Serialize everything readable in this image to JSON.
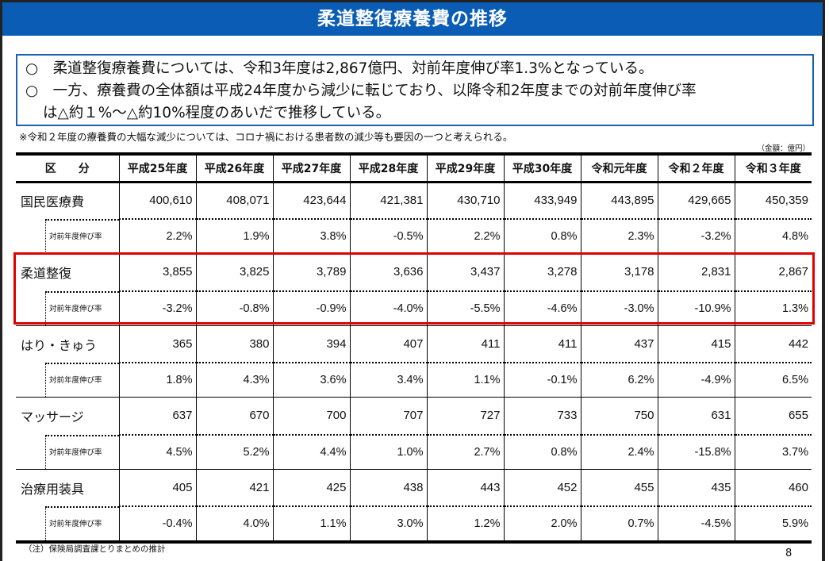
{
  "title": "柔道整復療養費の推移",
  "summary": {
    "line1": "○　柔道整復療養費については、令和3年度は2,867億円、対前年度伸び率1.3%となっている。",
    "line2": "○　一方、療養費の全体額は平成24年度から減少に転じており、以降令和2年度までの対前年度伸び率",
    "line3": "は△約１%～△約10%程度のあいだで推移している。"
  },
  "note": "※令和２年度の療養費の大幅な減少については、コロナ禍における患者数の減少等も要因の一つと考えられる。",
  "unit": "（金額：億円）",
  "table": {
    "headers": [
      "区　　分",
      "平成25年度",
      "平成26年度",
      "平成27年度",
      "平成28年度",
      "平成29年度",
      "平成30年度",
      "令和元年度",
      "令和２年度",
      "令和３年度"
    ],
    "sub_label": "対前年度伸び率",
    "rows": [
      {
        "category": "国民医療費",
        "values": [
          "400,610",
          "408,071",
          "423,644",
          "421,381",
          "430,710",
          "433,949",
          "443,895",
          "429,665",
          "450,359"
        ],
        "rates": [
          "2.2%",
          "1.9%",
          "3.8%",
          "-0.5%",
          "2.2%",
          "0.8%",
          "2.3%",
          "-3.2%",
          "4.8%"
        ]
      },
      {
        "category": "柔道整復",
        "highlighted": true,
        "values": [
          "3,855",
          "3,825",
          "3,789",
          "3,636",
          "3,437",
          "3,278",
          "3,178",
          "2,831",
          "2,867"
        ],
        "rates": [
          "-3.2%",
          "-0.8%",
          "-0.9%",
          "-4.0%",
          "-5.5%",
          "-4.6%",
          "-3.0%",
          "-10.9%",
          "1.3%"
        ]
      },
      {
        "category": "はり・きゅう",
        "values": [
          "365",
          "380",
          "394",
          "407",
          "411",
          "411",
          "437",
          "415",
          "442"
        ],
        "rates": [
          "1.8%",
          "4.3%",
          "3.6%",
          "3.4%",
          "1.1%",
          "-0.1%",
          "6.2%",
          "-4.9%",
          "6.5%"
        ]
      },
      {
        "category": "マッサージ",
        "values": [
          "637",
          "670",
          "700",
          "707",
          "727",
          "733",
          "750",
          "631",
          "655"
        ],
        "rates": [
          "4.5%",
          "5.2%",
          "4.4%",
          "1.0%",
          "2.7%",
          "0.8%",
          "2.4%",
          "-15.8%",
          "3.7%"
        ]
      },
      {
        "category": "治療用装具",
        "values": [
          "405",
          "421",
          "425",
          "438",
          "443",
          "452",
          "455",
          "435",
          "460"
        ],
        "rates": [
          "-0.4%",
          "4.0%",
          "1.1%",
          "3.0%",
          "1.2%",
          "2.0%",
          "0.7%",
          "-4.5%",
          "5.9%"
        ]
      }
    ]
  },
  "footnote": "（注）保険局調査課とりまとめの推計",
  "page_number": "8",
  "colors": {
    "header_bg": "#0a5cb4",
    "box_border": "#1e5fae",
    "highlight": "#e00000"
  }
}
